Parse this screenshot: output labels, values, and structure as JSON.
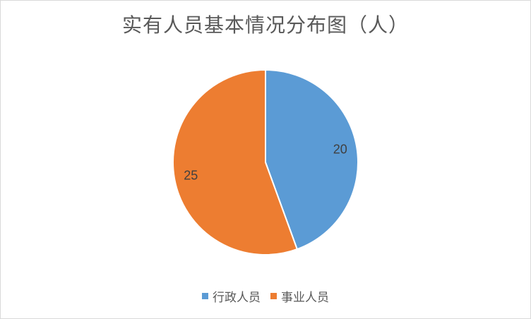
{
  "chart_data": {
    "type": "pie",
    "title": "实有人员基本情况分布图（人）",
    "categories": [
      "行政人员",
      "事业人员"
    ],
    "values": [
      20,
      25
    ],
    "colors": [
      "#5b9bd5",
      "#ed7d31"
    ],
    "data_labels": [
      "20",
      "25"
    ],
    "legend_position": "bottom"
  }
}
